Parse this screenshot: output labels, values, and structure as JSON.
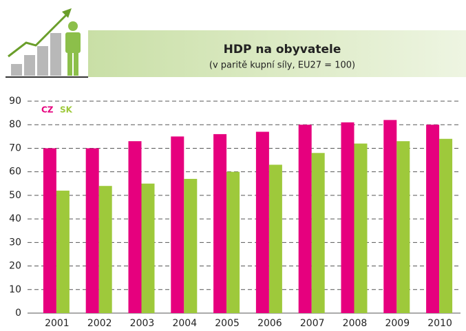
{
  "chart_data": {
    "type": "bar",
    "title": "HDP na obyvatele",
    "subtitle": "(v paritě kupní síly, EU27 = 100)",
    "categories": [
      "2001",
      "2002",
      "2003",
      "2004",
      "2005",
      "2006",
      "2007",
      "2008",
      "2009",
      "2010"
    ],
    "series": [
      {
        "name": "CZ",
        "color": "#e6007e",
        "values": [
          70,
          70,
          73,
          75,
          76,
          77,
          80,
          81,
          82,
          80
        ]
      },
      {
        "name": "SK",
        "color": "#9ec93b",
        "values": [
          52,
          54,
          55,
          57,
          60,
          63,
          68,
          72,
          73,
          74
        ]
      }
    ],
    "ylim": [
      0,
      90
    ],
    "yticks": [
      0,
      10,
      20,
      30,
      40,
      50,
      60,
      70,
      80,
      90
    ],
    "grid": true
  }
}
